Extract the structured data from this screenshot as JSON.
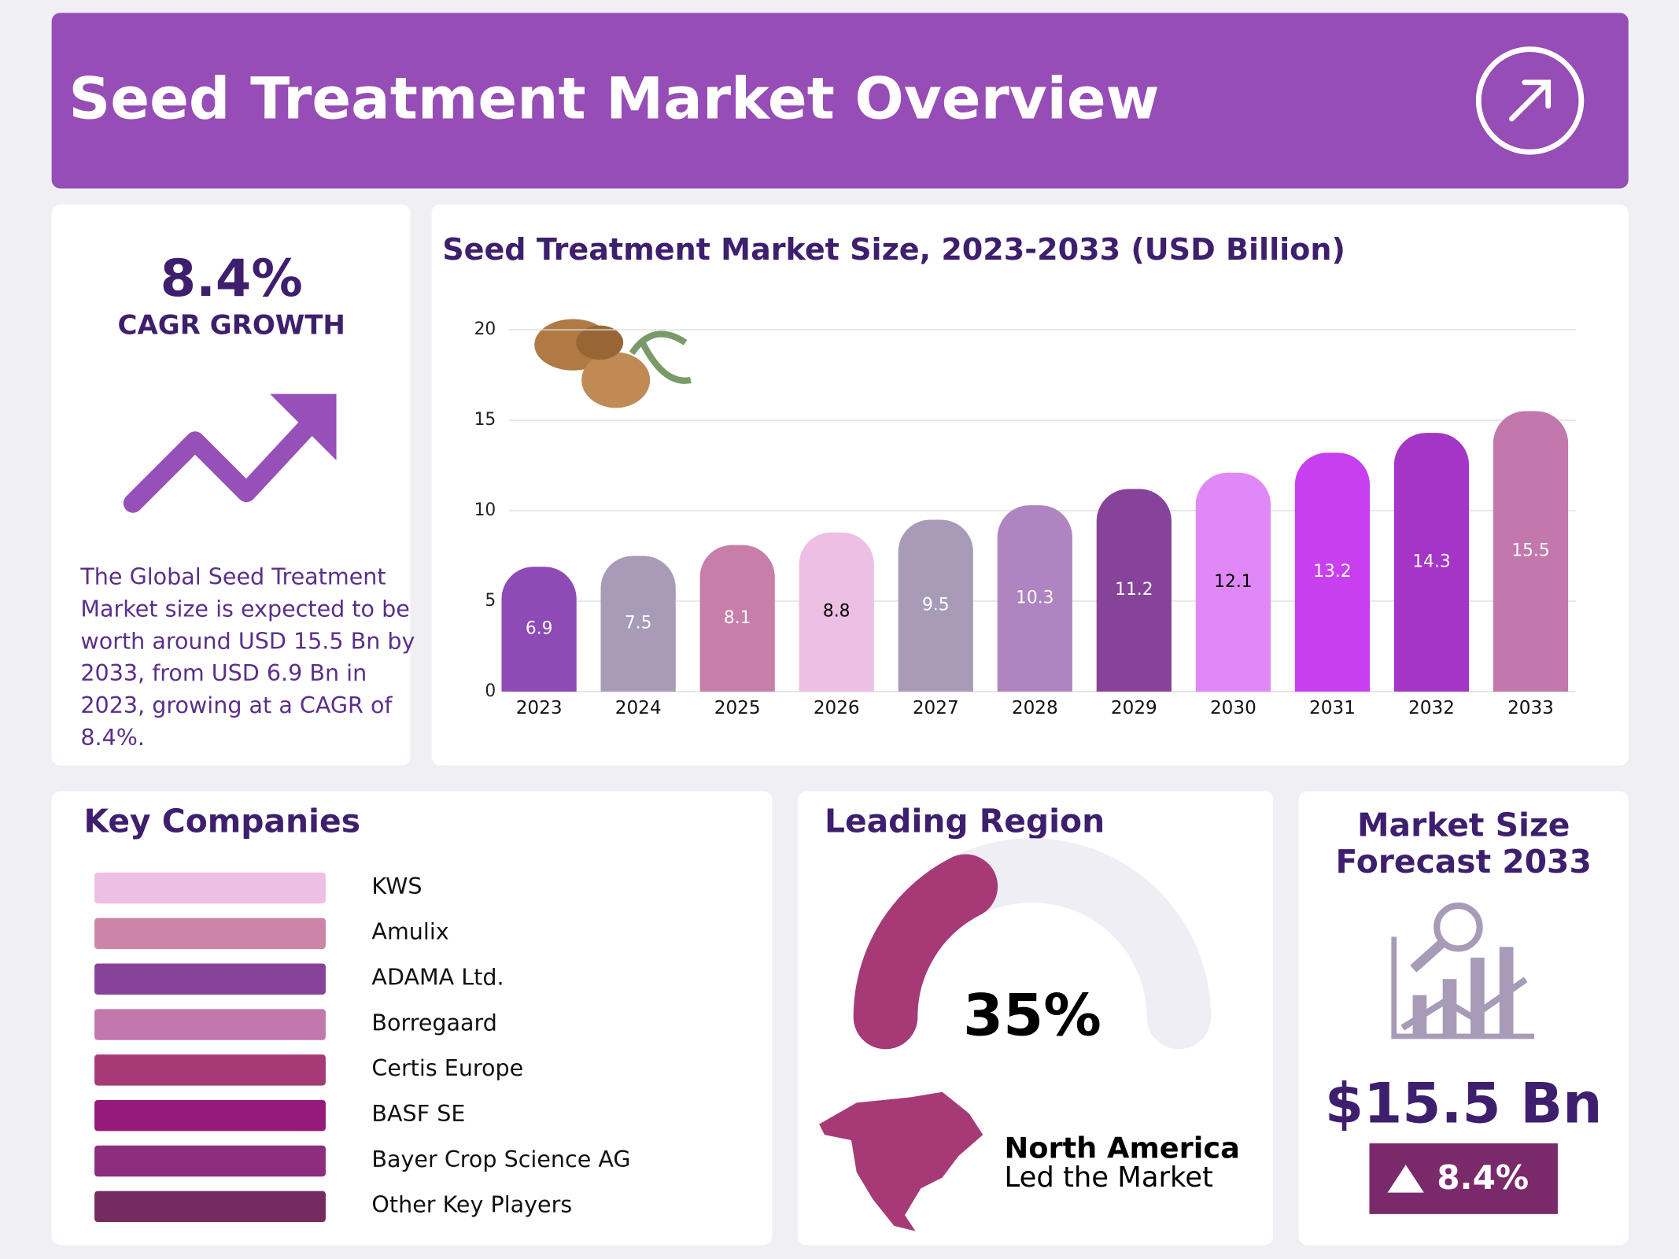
{
  "header": {
    "title": "Seed Treatment Market Overview"
  },
  "cagr": {
    "value": "8.4%",
    "label": "CAGR GROWTH",
    "description": [
      "The Global Seed Treatment",
      "Market size is expected to be",
      "worth around USD 15.5 Bn by",
      "2033, from USD 6.9 Bn in",
      "2023, growing at a CAGR of",
      "8.4%."
    ]
  },
  "chart_data": {
    "type": "bar",
    "title": "Seed Treatment Market Size, 2023-2033 (USD Billion)",
    "categories": [
      "2023",
      "2024",
      "2025",
      "2026",
      "2027",
      "2028",
      "2029",
      "2030",
      "2031",
      "2032",
      "2033"
    ],
    "values": [
      6.9,
      7.5,
      8.1,
      8.8,
      9.5,
      10.3,
      11.2,
      12.1,
      13.2,
      14.3,
      15.5
    ],
    "colors": [
      "#8e4ab5",
      "#a79bb8",
      "#c77fa9",
      "#edbfe5",
      "#a89bb8",
      "#b084c0",
      "#874399",
      "#e088f5",
      "#c83ff0",
      "#a535c7",
      "#c278ac"
    ],
    "value_label_colors": [
      "#ffffff",
      "#ffffff",
      "#ffffff",
      "#000000",
      "#ffffff",
      "#ffffff",
      "#ffffff",
      "#000000",
      "#ffffff",
      "#ffffff",
      "#ffffff"
    ],
    "ylim": [
      0,
      20
    ],
    "yticks": [
      0,
      5,
      10,
      15,
      20
    ],
    "grid": true
  },
  "companies": {
    "title": "Key Companies",
    "names": [
      "KWS",
      "Amulix",
      "ADAMA Ltd.",
      "Borregaard",
      "Certis Europe",
      "BASF SE",
      "Bayer Crop Science AG",
      "Other Key Players"
    ],
    "colors": [
      "#edbfe5",
      "#cc85a8",
      "#874399",
      "#c278ac",
      "#a63a76",
      "#961a7a",
      "#8e2d7e",
      "#742c5e"
    ]
  },
  "region": {
    "title": "Leading Region",
    "share": 35,
    "share_label": "35%",
    "name": "North America",
    "caption": "Led the Market"
  },
  "forecast": {
    "title": [
      "Market Size",
      "Forecast 2033"
    ],
    "value": "$15.5 Bn",
    "growth": "8.4%"
  }
}
